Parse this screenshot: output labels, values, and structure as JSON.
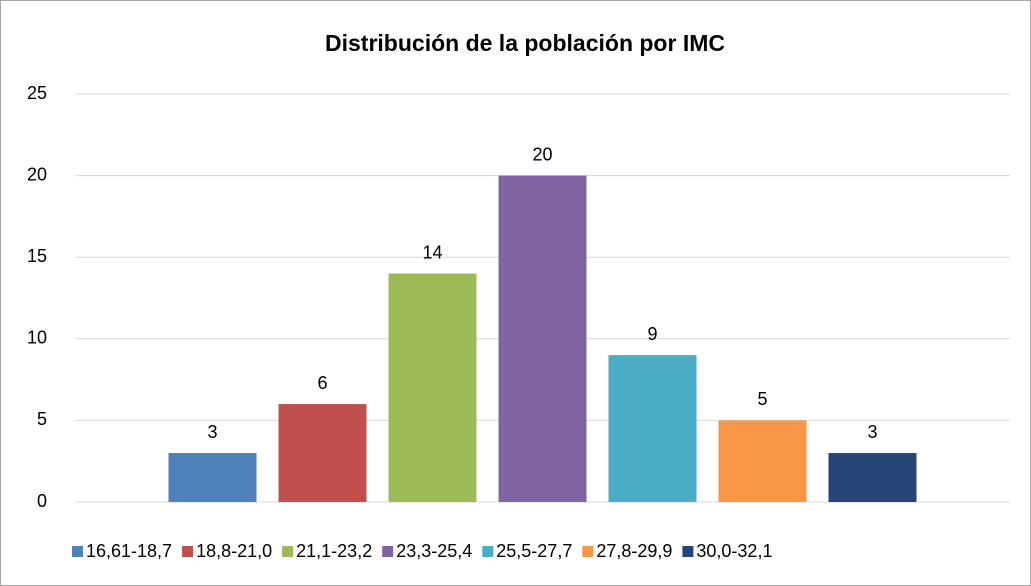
{
  "chart_data": {
    "type": "bar",
    "title": "Distribución de la población por IMC",
    "categories": [
      null
    ],
    "series": [
      {
        "name": "16,61-18,7",
        "color": "#4f81bd",
        "values": [
          3
        ]
      },
      {
        "name": "18,8-21,0",
        "color": "#c0504d",
        "values": [
          6
        ]
      },
      {
        "name": "21,1-23,2",
        "color": "#9bbb59",
        "values": [
          14
        ]
      },
      {
        "name": "23,3-25,4",
        "color": "#8064a2",
        "values": [
          20
        ]
      },
      {
        "name": "25,5-27,7",
        "color": "#4bacc6",
        "values": [
          9
        ]
      },
      {
        "name": "27,8-29,9",
        "color": "#f79646",
        "values": [
          5
        ]
      },
      {
        "name": "30,0-32,1",
        "color": "#264478",
        "values": [
          3
        ]
      }
    ],
    "ylim": [
      0,
      25
    ],
    "yticks": [
      0,
      5,
      10,
      15,
      20,
      25
    ],
    "grid": true,
    "legend": "bottom"
  }
}
